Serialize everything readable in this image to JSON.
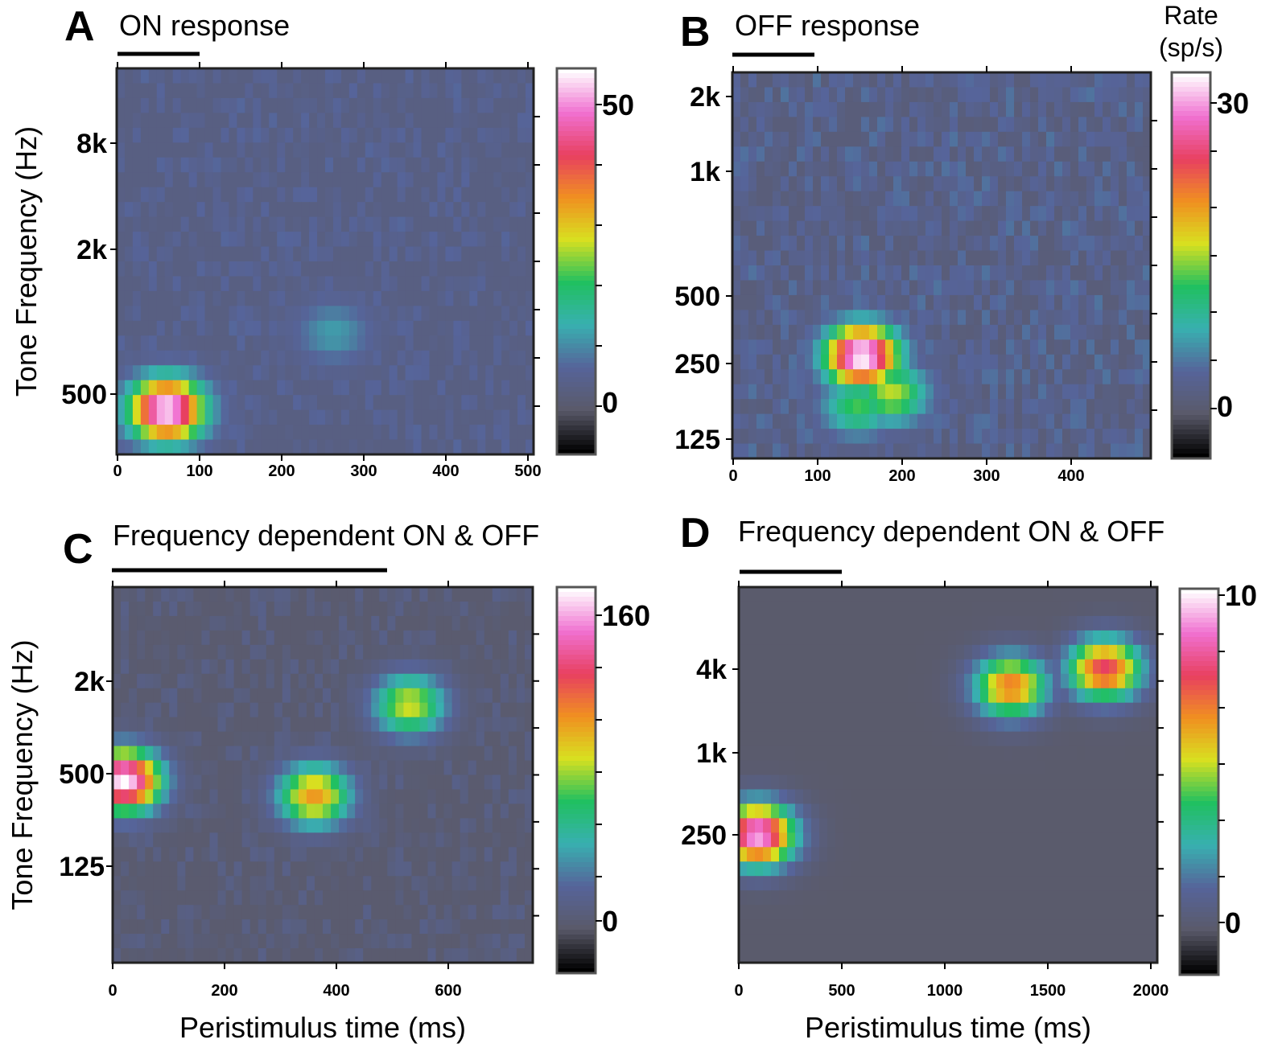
{
  "axis_labels": {
    "y": "Tone Frequency (Hz)",
    "x": "Peristimulus time (ms)"
  },
  "colorbar_header": [
    "Rate",
    "(sp/s)"
  ],
  "colormap": [
    "#000000",
    "#5a5a6a",
    "#56649a",
    "#38b0b0",
    "#20c060",
    "#d8e020",
    "#f09020",
    "#e84060",
    "#f070d0",
    "#ffffff"
  ],
  "chart_data": [
    {
      "panel": "A",
      "type": "heatmap",
      "title": "ON response",
      "ylabel": "Tone Frequency (Hz)",
      "xlabel": "",
      "xlim": [
        0,
        500
      ],
      "x_ticks": [
        "0",
        "100",
        "200",
        "300",
        "400",
        "500"
      ],
      "y_ticks": [
        "8k",
        "2k",
        "500"
      ],
      "stimulus_bar_ms": [
        0,
        100
      ],
      "colorbar": {
        "ticks": [
          "50",
          "0"
        ],
        "range": [
          -12,
          60
        ]
      },
      "hotspots": [
        {
          "time_ms": 60,
          "freq_hz": 430,
          "rate": 60
        },
        {
          "time_ms": 260,
          "freq_hz": 900,
          "rate": 10
        }
      ],
      "background_rate": 0
    },
    {
      "panel": "B",
      "type": "heatmap",
      "title": "OFF response",
      "ylabel": "",
      "xlabel": "",
      "xlim": [
        0,
        500
      ],
      "x_ticks": [
        "0",
        "100",
        "200",
        "300",
        "400"
      ],
      "y_ticks": [
        "2k",
        "1k",
        "500",
        "250",
        "125"
      ],
      "stimulus_bar_ms": [
        0,
        100
      ],
      "colorbar": {
        "ticks": [
          "30",
          "0"
        ],
        "range": [
          -5,
          33
        ]
      },
      "hotspots": [
        {
          "time_ms": 155,
          "freq_hz": 270,
          "rate": 33
        },
        {
          "time_ms": 190,
          "freq_hz": 190,
          "rate": 15
        },
        {
          "time_ms": 150,
          "freq_hz": 170,
          "rate": 12
        }
      ],
      "background_rate": 2
    },
    {
      "panel": "C",
      "type": "heatmap",
      "title": "Frequency dependent ON & OFF",
      "ylabel": "Tone Frequency (Hz)",
      "xlabel": "Peristimulus time (ms)",
      "xlim": [
        0,
        750
      ],
      "x_ticks": [
        "0",
        "200",
        "400",
        "600"
      ],
      "y_ticks": [
        "2k",
        "500",
        "125"
      ],
      "stimulus_bar_ms": [
        0,
        500
      ],
      "colorbar": {
        "ticks": [
          "160",
          "0"
        ],
        "range": [
          -25,
          180
        ]
      },
      "hotspots": [
        {
          "time_ms": 20,
          "freq_hz": 450,
          "rate": 180
        },
        {
          "time_ms": 360,
          "freq_hz": 360,
          "rate": 110
        },
        {
          "time_ms": 530,
          "freq_hz": 1400,
          "rate": 90
        }
      ],
      "background_rate": 0
    },
    {
      "panel": "D",
      "type": "heatmap",
      "title": "Frequency dependent ON & OFF",
      "ylabel": "",
      "xlabel": "Peristimulus time (ms)",
      "xlim": [
        0,
        2000
      ],
      "x_ticks": [
        "0",
        "500",
        "1000",
        "1500",
        "2000"
      ],
      "y_ticks": [
        "4k",
        "1k",
        "250"
      ],
      "stimulus_bar_ms": [
        0,
        500
      ],
      "colorbar": {
        "ticks": [
          "10",
          "0"
        ],
        "range": [
          -2,
          10
        ]
      },
      "hotspots": [
        {
          "time_ms": 90,
          "freq_hz": 250,
          "rate": 10
        },
        {
          "time_ms": 1750,
          "freq_hz": 4000,
          "rate": 8
        },
        {
          "time_ms": 1300,
          "freq_hz": 3000,
          "rate": 7
        }
      ],
      "background_rate": -2
    }
  ]
}
